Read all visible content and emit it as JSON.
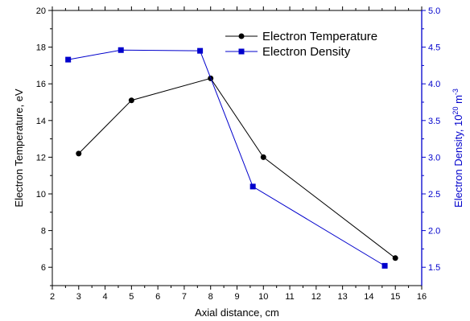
{
  "colors": {
    "left_axis": "#000000",
    "right_axis": "#0000cc",
    "temperature_series": "#000000",
    "density_series": "#0000cc"
  },
  "chart_data": {
    "type": "line",
    "grid": false,
    "legend_position": "top-right",
    "x_axis": {
      "label": "Axial distance, cm",
      "range": [
        2,
        16
      ],
      "ticks": [
        2,
        3,
        4,
        5,
        6,
        7,
        8,
        9,
        10,
        11,
        12,
        13,
        14,
        15,
        16
      ]
    },
    "y_axis_left": {
      "label": "Electron Temperature, eV",
      "range": [
        5,
        20
      ],
      "ticks": [
        6,
        8,
        10,
        12,
        14,
        16,
        18,
        20
      ]
    },
    "y_axis_right": {
      "label_main": "Electron Density, 10",
      "label_superscript_1": "20",
      "label_unit": " m",
      "label_superscript_2": "-3",
      "range": [
        1.25,
        5.0
      ],
      "ticks": [
        "1.5",
        "2.0",
        "2.5",
        "3.0",
        "3.5",
        "4.0",
        "4.5",
        "5.0"
      ]
    },
    "series": [
      {
        "name": "Electron Temperature",
        "axis": "left",
        "marker": "circle",
        "x": [
          3,
          5,
          8,
          10,
          15
        ],
        "y": [
          12.2,
          15.1,
          16.3,
          12.0,
          6.5
        ]
      },
      {
        "name": "Electron Density",
        "axis": "right",
        "marker": "square",
        "x": [
          2.6,
          4.6,
          7.6,
          9.6,
          14.6
        ],
        "y": [
          4.33,
          4.46,
          4.45,
          2.6,
          1.52
        ]
      }
    ]
  }
}
